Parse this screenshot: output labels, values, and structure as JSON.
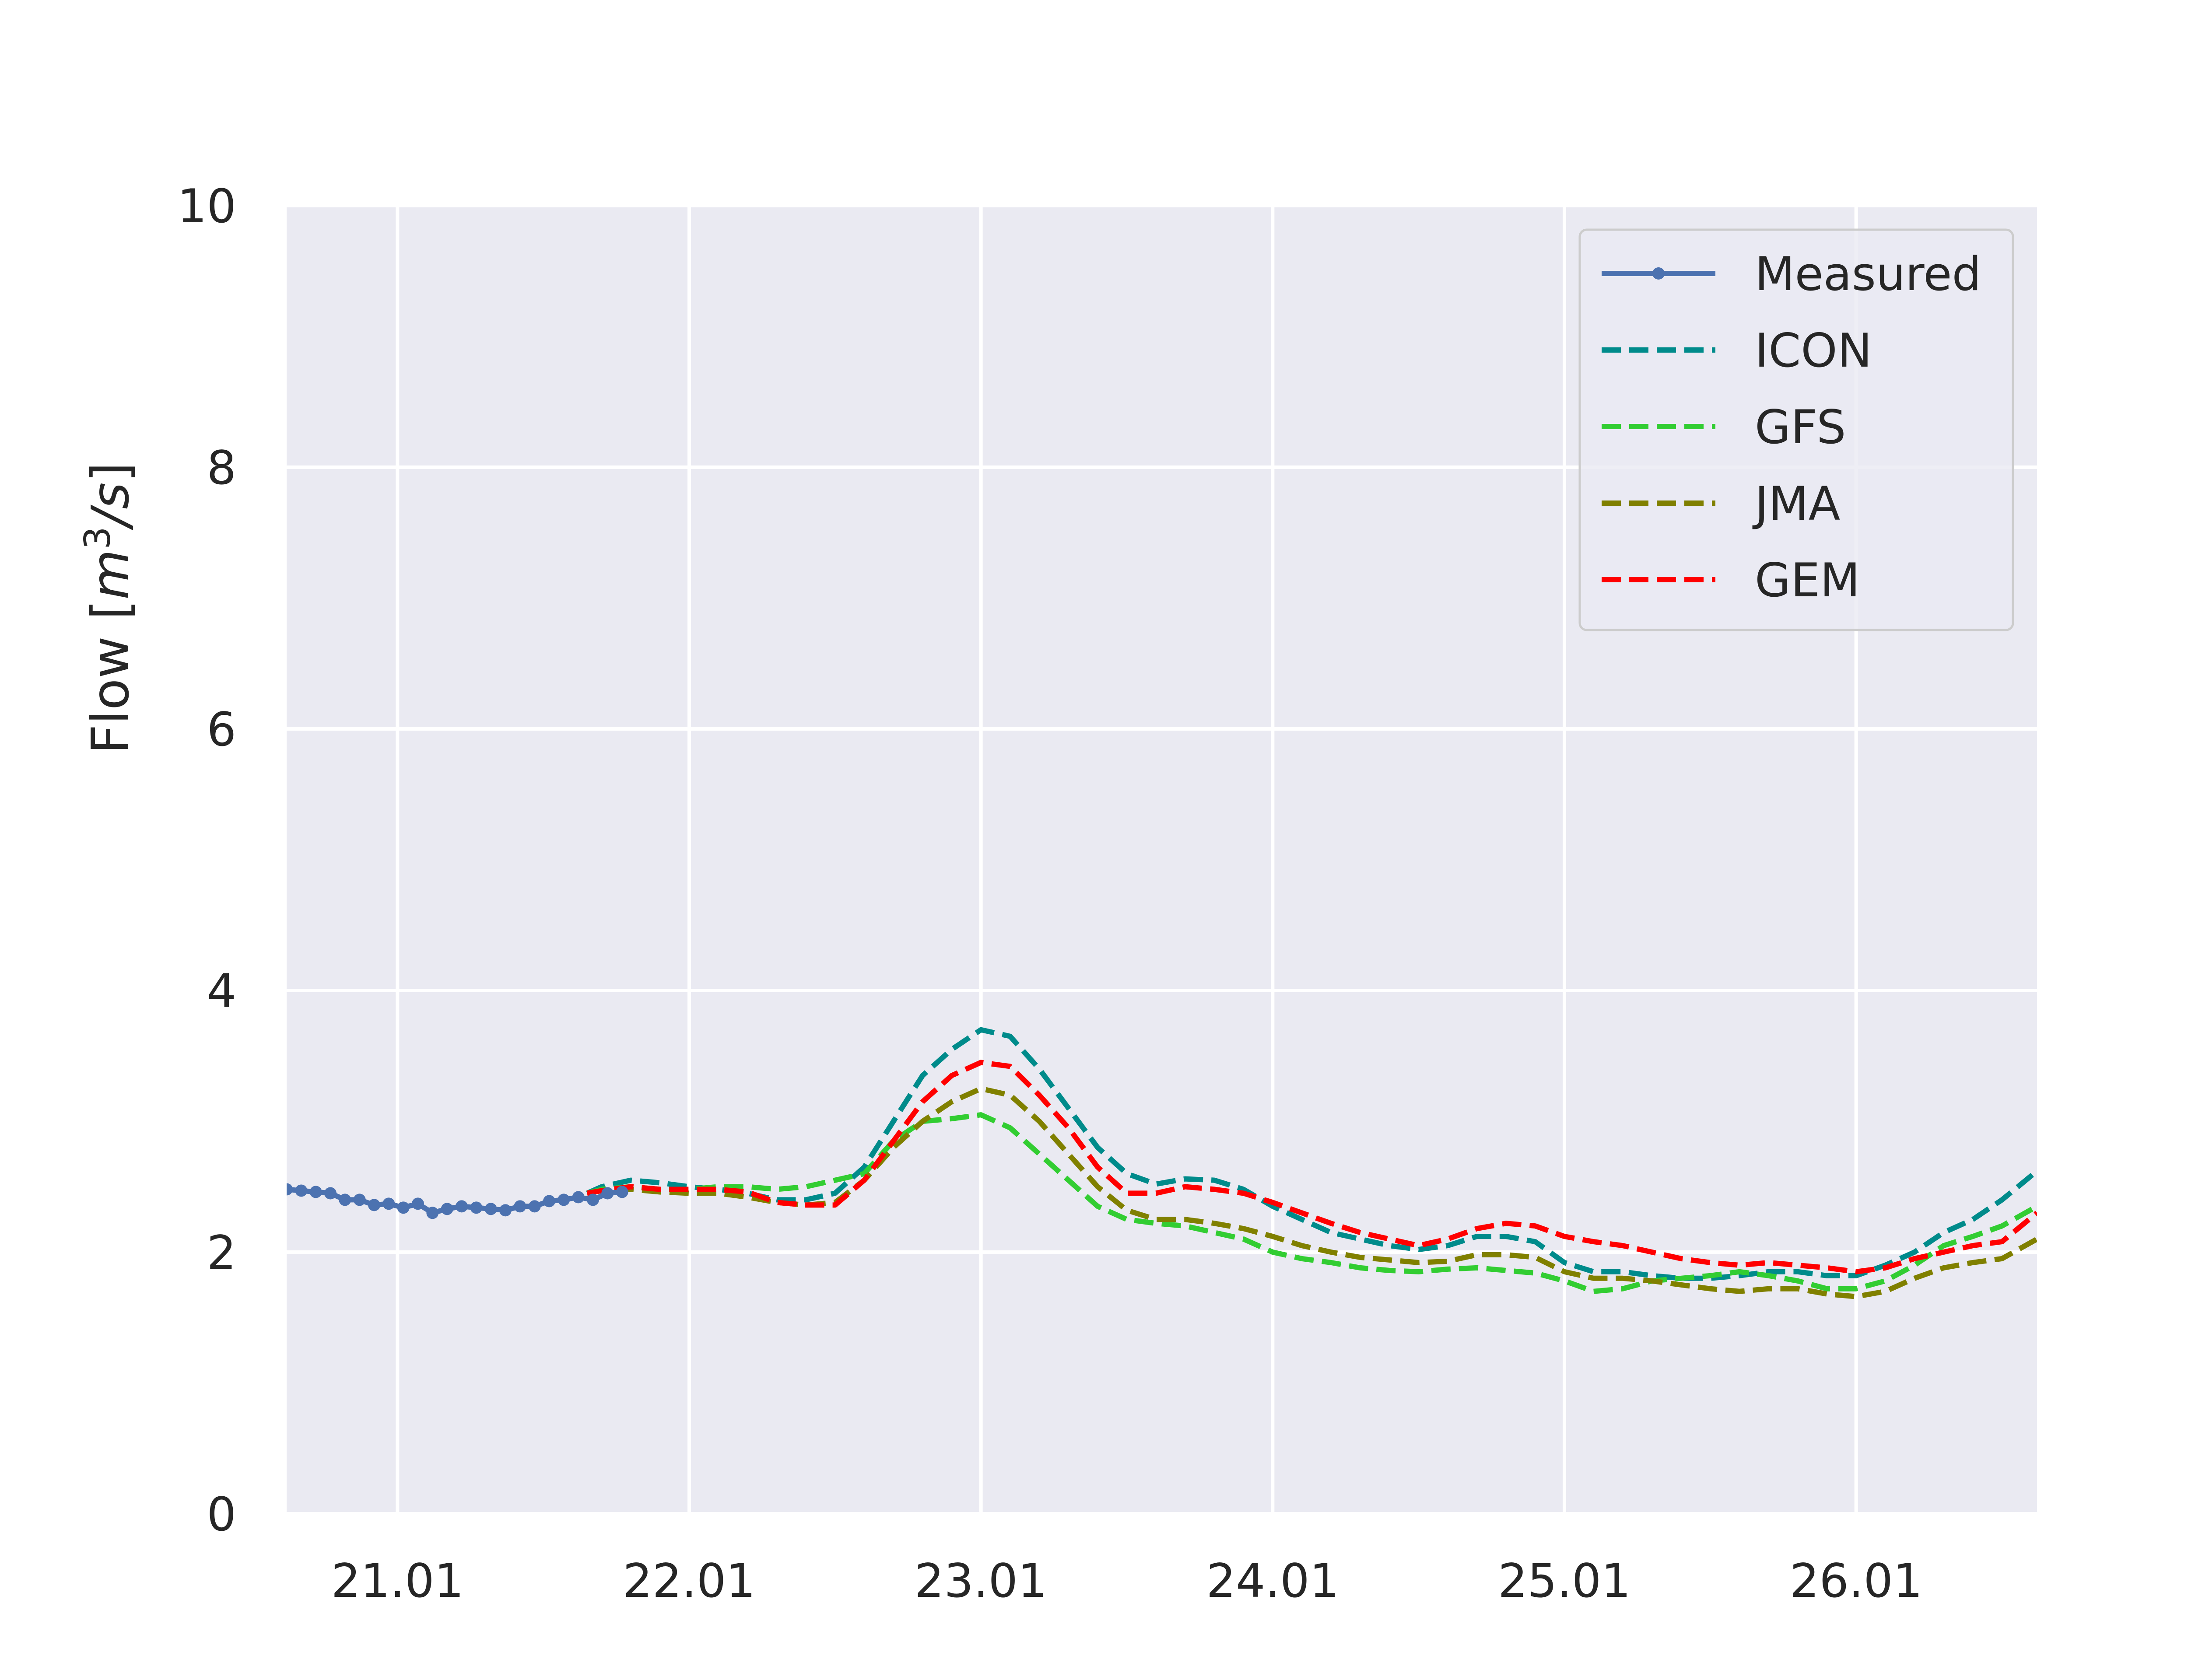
{
  "chart_data": {
    "type": "line",
    "title": "",
    "xlabel": "",
    "ylabel": "Flow [m³/s]",
    "ylabel_parts": {
      "prefix": "Flow [",
      "unit_base": "m",
      "unit_sup": "3",
      "unit_rest": "/s",
      "suffix": "]"
    },
    "x_unit": "day",
    "x_range": [
      20.62,
      26.62
    ],
    "ylim": [
      0,
      10
    ],
    "x_ticks": [
      {
        "x": 21,
        "label": "21.01"
      },
      {
        "x": 22,
        "label": "22.01"
      },
      {
        "x": 23,
        "label": "23.01"
      },
      {
        "x": 24,
        "label": "24.01"
      },
      {
        "x": 25,
        "label": "25.01"
      },
      {
        "x": 26,
        "label": "26.01"
      }
    ],
    "y_ticks": [
      {
        "y": 0,
        "label": "0"
      },
      {
        "y": 2,
        "label": "2"
      },
      {
        "y": 4,
        "label": "4"
      },
      {
        "y": 6,
        "label": "6"
      },
      {
        "y": 8,
        "label": "8"
      },
      {
        "y": 10,
        "label": "10"
      }
    ],
    "grid": true,
    "background_color": "#EAEAF2",
    "legend_position": "top-right",
    "series": [
      {
        "name": "Measured",
        "style": "solid-marker",
        "color": "#4C72B0",
        "points": [
          [
            20.62,
            2.48
          ],
          [
            20.67,
            2.47
          ],
          [
            20.72,
            2.46
          ],
          [
            20.77,
            2.45
          ],
          [
            20.82,
            2.4
          ],
          [
            20.87,
            2.4
          ],
          [
            20.92,
            2.36
          ],
          [
            20.97,
            2.37
          ],
          [
            21.02,
            2.34
          ],
          [
            21.07,
            2.37
          ],
          [
            21.12,
            2.3
          ],
          [
            21.17,
            2.33
          ],
          [
            21.22,
            2.35
          ],
          [
            21.27,
            2.34
          ],
          [
            21.32,
            2.33
          ],
          [
            21.37,
            2.32
          ],
          [
            21.42,
            2.35
          ],
          [
            21.47,
            2.35
          ],
          [
            21.52,
            2.39
          ],
          [
            21.57,
            2.4
          ],
          [
            21.62,
            2.42
          ],
          [
            21.67,
            2.4
          ],
          [
            21.72,
            2.45
          ],
          [
            21.77,
            2.46
          ]
        ]
      },
      {
        "name": "ICON",
        "style": "dashed",
        "color": "#008B8B",
        "points": [
          [
            21.65,
            2.45
          ],
          [
            21.7,
            2.5
          ],
          [
            21.8,
            2.55
          ],
          [
            21.9,
            2.53
          ],
          [
            22.0,
            2.5
          ],
          [
            22.1,
            2.48
          ],
          [
            22.2,
            2.45
          ],
          [
            22.3,
            2.4
          ],
          [
            22.4,
            2.4
          ],
          [
            22.5,
            2.45
          ],
          [
            22.6,
            2.65
          ],
          [
            22.7,
            3.0
          ],
          [
            22.8,
            3.35
          ],
          [
            22.9,
            3.55
          ],
          [
            23.0,
            3.7
          ],
          [
            23.1,
            3.65
          ],
          [
            23.2,
            3.4
          ],
          [
            23.3,
            3.1
          ],
          [
            23.4,
            2.8
          ],
          [
            23.5,
            2.6
          ],
          [
            23.6,
            2.52
          ],
          [
            23.7,
            2.56
          ],
          [
            23.8,
            2.55
          ],
          [
            23.9,
            2.48
          ],
          [
            24.0,
            2.35
          ],
          [
            24.1,
            2.25
          ],
          [
            24.2,
            2.15
          ],
          [
            24.3,
            2.1
          ],
          [
            24.4,
            2.05
          ],
          [
            24.5,
            2.02
          ],
          [
            24.6,
            2.05
          ],
          [
            24.7,
            2.12
          ],
          [
            24.8,
            2.12
          ],
          [
            24.9,
            2.08
          ],
          [
            25.0,
            1.92
          ],
          [
            25.1,
            1.85
          ],
          [
            25.2,
            1.85
          ],
          [
            25.3,
            1.82
          ],
          [
            25.4,
            1.8
          ],
          [
            25.5,
            1.8
          ],
          [
            25.6,
            1.82
          ],
          [
            25.7,
            1.85
          ],
          [
            25.8,
            1.85
          ],
          [
            25.9,
            1.82
          ],
          [
            26.0,
            1.82
          ],
          [
            26.1,
            1.9
          ],
          [
            26.2,
            2.0
          ],
          [
            26.3,
            2.15
          ],
          [
            26.4,
            2.25
          ],
          [
            26.5,
            2.4
          ],
          [
            26.62,
            2.62
          ]
        ]
      },
      {
        "name": "GFS",
        "style": "dashed",
        "color": "#32CD32",
        "points": [
          [
            21.65,
            2.45
          ],
          [
            21.7,
            2.48
          ],
          [
            21.8,
            2.5
          ],
          [
            21.9,
            2.48
          ],
          [
            22.0,
            2.48
          ],
          [
            22.1,
            2.5
          ],
          [
            22.2,
            2.5
          ],
          [
            22.3,
            2.48
          ],
          [
            22.4,
            2.5
          ],
          [
            22.5,
            2.55
          ],
          [
            22.6,
            2.6
          ],
          [
            22.7,
            2.85
          ],
          [
            22.8,
            3.0
          ],
          [
            22.9,
            3.02
          ],
          [
            23.0,
            3.05
          ],
          [
            23.1,
            2.95
          ],
          [
            23.2,
            2.75
          ],
          [
            23.3,
            2.55
          ],
          [
            23.4,
            2.35
          ],
          [
            23.5,
            2.25
          ],
          [
            23.6,
            2.22
          ],
          [
            23.7,
            2.2
          ],
          [
            23.8,
            2.15
          ],
          [
            23.9,
            2.1
          ],
          [
            24.0,
            2.0
          ],
          [
            24.1,
            1.95
          ],
          [
            24.2,
            1.92
          ],
          [
            24.3,
            1.88
          ],
          [
            24.4,
            1.86
          ],
          [
            24.5,
            1.85
          ],
          [
            24.6,
            1.87
          ],
          [
            24.7,
            1.88
          ],
          [
            24.8,
            1.86
          ],
          [
            24.9,
            1.84
          ],
          [
            25.0,
            1.78
          ],
          [
            25.1,
            1.7
          ],
          [
            25.2,
            1.72
          ],
          [
            25.3,
            1.78
          ],
          [
            25.4,
            1.8
          ],
          [
            25.5,
            1.82
          ],
          [
            25.6,
            1.85
          ],
          [
            25.7,
            1.82
          ],
          [
            25.8,
            1.78
          ],
          [
            25.9,
            1.72
          ],
          [
            26.0,
            1.72
          ],
          [
            26.1,
            1.78
          ],
          [
            26.2,
            1.9
          ],
          [
            26.3,
            2.05
          ],
          [
            26.4,
            2.12
          ],
          [
            26.5,
            2.2
          ],
          [
            26.62,
            2.35
          ]
        ]
      },
      {
        "name": "JMA",
        "style": "dashed",
        "color": "#808000",
        "points": [
          [
            21.65,
            2.45
          ],
          [
            21.7,
            2.47
          ],
          [
            21.8,
            2.48
          ],
          [
            21.9,
            2.46
          ],
          [
            22.0,
            2.45
          ],
          [
            22.1,
            2.45
          ],
          [
            22.2,
            2.42
          ],
          [
            22.3,
            2.38
          ],
          [
            22.4,
            2.36
          ],
          [
            22.5,
            2.38
          ],
          [
            22.6,
            2.55
          ],
          [
            22.7,
            2.8
          ],
          [
            22.8,
            3.0
          ],
          [
            22.9,
            3.15
          ],
          [
            23.0,
            3.25
          ],
          [
            23.1,
            3.2
          ],
          [
            23.2,
            3.0
          ],
          [
            23.3,
            2.75
          ],
          [
            23.4,
            2.5
          ],
          [
            23.5,
            2.32
          ],
          [
            23.6,
            2.25
          ],
          [
            23.7,
            2.25
          ],
          [
            23.8,
            2.22
          ],
          [
            23.9,
            2.18
          ],
          [
            24.0,
            2.12
          ],
          [
            24.1,
            2.05
          ],
          [
            24.2,
            2.0
          ],
          [
            24.3,
            1.96
          ],
          [
            24.4,
            1.94
          ],
          [
            24.5,
            1.92
          ],
          [
            24.6,
            1.93
          ],
          [
            24.7,
            1.98
          ],
          [
            24.8,
            1.98
          ],
          [
            24.9,
            1.96
          ],
          [
            25.0,
            1.85
          ],
          [
            25.1,
            1.8
          ],
          [
            25.2,
            1.8
          ],
          [
            25.3,
            1.78
          ],
          [
            25.4,
            1.75
          ],
          [
            25.5,
            1.72
          ],
          [
            25.6,
            1.7
          ],
          [
            25.7,
            1.72
          ],
          [
            25.8,
            1.72
          ],
          [
            25.9,
            1.68
          ],
          [
            26.0,
            1.66
          ],
          [
            26.1,
            1.7
          ],
          [
            26.2,
            1.8
          ],
          [
            26.3,
            1.88
          ],
          [
            26.4,
            1.92
          ],
          [
            26.5,
            1.95
          ],
          [
            26.62,
            2.1
          ]
        ]
      },
      {
        "name": "GEM",
        "style": "dashed",
        "color": "#FF0000",
        "points": [
          [
            21.65,
            2.45
          ],
          [
            21.7,
            2.47
          ],
          [
            21.8,
            2.5
          ],
          [
            21.9,
            2.48
          ],
          [
            22.0,
            2.48
          ],
          [
            22.1,
            2.48
          ],
          [
            22.2,
            2.46
          ],
          [
            22.3,
            2.38
          ],
          [
            22.4,
            2.36
          ],
          [
            22.5,
            2.36
          ],
          [
            22.6,
            2.55
          ],
          [
            22.7,
            2.85
          ],
          [
            22.8,
            3.15
          ],
          [
            22.9,
            3.35
          ],
          [
            23.0,
            3.45
          ],
          [
            23.1,
            3.42
          ],
          [
            23.2,
            3.2
          ],
          [
            23.3,
            2.95
          ],
          [
            23.4,
            2.65
          ],
          [
            23.5,
            2.45
          ],
          [
            23.6,
            2.45
          ],
          [
            23.7,
            2.5
          ],
          [
            23.8,
            2.48
          ],
          [
            23.9,
            2.45
          ],
          [
            24.0,
            2.38
          ],
          [
            24.1,
            2.3
          ],
          [
            24.2,
            2.22
          ],
          [
            24.3,
            2.15
          ],
          [
            24.4,
            2.1
          ],
          [
            24.5,
            2.05
          ],
          [
            24.6,
            2.1
          ],
          [
            24.7,
            2.18
          ],
          [
            24.8,
            2.22
          ],
          [
            24.9,
            2.2
          ],
          [
            25.0,
            2.12
          ],
          [
            25.1,
            2.08
          ],
          [
            25.2,
            2.05
          ],
          [
            25.3,
            2.0
          ],
          [
            25.4,
            1.95
          ],
          [
            25.5,
            1.92
          ],
          [
            25.6,
            1.9
          ],
          [
            25.7,
            1.92
          ],
          [
            25.8,
            1.9
          ],
          [
            25.9,
            1.88
          ],
          [
            26.0,
            1.85
          ],
          [
            26.1,
            1.88
          ],
          [
            26.2,
            1.95
          ],
          [
            26.3,
            2.0
          ],
          [
            26.4,
            2.05
          ],
          [
            26.5,
            2.08
          ],
          [
            26.62,
            2.3
          ]
        ]
      }
    ]
  }
}
